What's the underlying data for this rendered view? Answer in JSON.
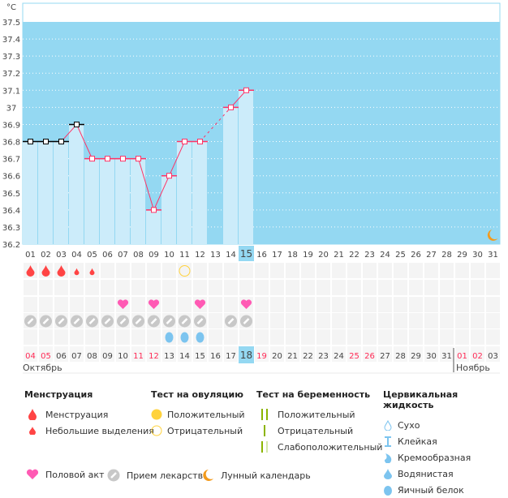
{
  "chart_data": {
    "type": "bar",
    "ylabel": "°C",
    "ylim": [
      36.2,
      37.5
    ],
    "yticks": [
      "36.2",
      "36.3",
      "36.4",
      "36.5",
      "36.6",
      "36.7",
      "36.8",
      "36.9",
      "37",
      "37.1",
      "37.2",
      "37.3",
      "37.4",
      "37.5"
    ],
    "cycle_days": [
      "01",
      "02",
      "03",
      "04",
      "05",
      "06",
      "07",
      "08",
      "09",
      "10",
      "11",
      "12",
      "13",
      "14",
      "15",
      "16",
      "17",
      "18",
      "19",
      "20",
      "21",
      "22",
      "23",
      "24",
      "25",
      "26",
      "27",
      "28",
      "29",
      "30",
      "31"
    ],
    "temperatures": [
      36.8,
      36.8,
      36.8,
      36.9,
      36.7,
      36.7,
      36.7,
      36.7,
      36.4,
      36.6,
      36.8,
      36.8,
      null,
      37.0,
      37.1
    ],
    "current_day": "15",
    "grid": true
  },
  "rows": {
    "menstruation": [
      "heavy",
      "heavy",
      "heavy",
      "light",
      "light"
    ],
    "ovulation_negative_days": [
      11
    ],
    "intercourse_days": [
      7,
      9,
      12,
      15
    ],
    "medication_days": [
      1,
      2,
      3,
      4,
      5,
      6,
      7,
      8,
      9,
      10,
      11,
      12,
      14,
      15
    ],
    "fluid_egg_white_days": [
      10,
      11,
      12
    ],
    "moon_day": 31
  },
  "dates": [
    "04",
    "05",
    "06",
    "07",
    "08",
    "09",
    "10",
    "11",
    "12",
    "13",
    "14",
    "15",
    "16",
    "17",
    "18",
    "19",
    "20",
    "21",
    "22",
    "23",
    "24",
    "25",
    "26",
    "27",
    "28",
    "29",
    "30",
    "31",
    "01",
    "02",
    "03"
  ],
  "weekend_dates_idx": [
    0,
    1,
    7,
    8,
    15,
    21,
    22,
    28,
    29
  ],
  "today_idx": 14,
  "months": {
    "first": "Октябрь",
    "second": "Ноябрь"
  },
  "legend": {
    "menstruation": {
      "title": "Менструация",
      "items": [
        "Менструация",
        "Небольшие выделения"
      ]
    },
    "ovulation": {
      "title": "Тест на овуляцию",
      "items": [
        "Положительный",
        "Отрицательный"
      ]
    },
    "pregnancy": {
      "title": "Тест на беременность",
      "items": [
        "Положительный",
        "Отрицательный",
        "Слабоположительный"
      ]
    },
    "fluid": {
      "title": "Цервикальная жидкость",
      "items": [
        "Сухо",
        "Клейкая",
        "Кремообразная",
        "Водянистая",
        "Яичный белок"
      ]
    },
    "intercourse": "Половой акт",
    "medication": "Прием лекарств",
    "moon": "Лунный календарь"
  },
  "colors": {
    "plot_bg": "#94d8f2",
    "bar": "#ccecfa",
    "line": "#ff3366",
    "red": "#ff4444",
    "heart": "#ff5ab4",
    "pill": "#c8c8c8",
    "fluid": "#7cc4ef",
    "ovulation": "#ffd23c",
    "test": "#8cb400",
    "moon": "#f39a1c",
    "weekend": "#ff2a55"
  }
}
